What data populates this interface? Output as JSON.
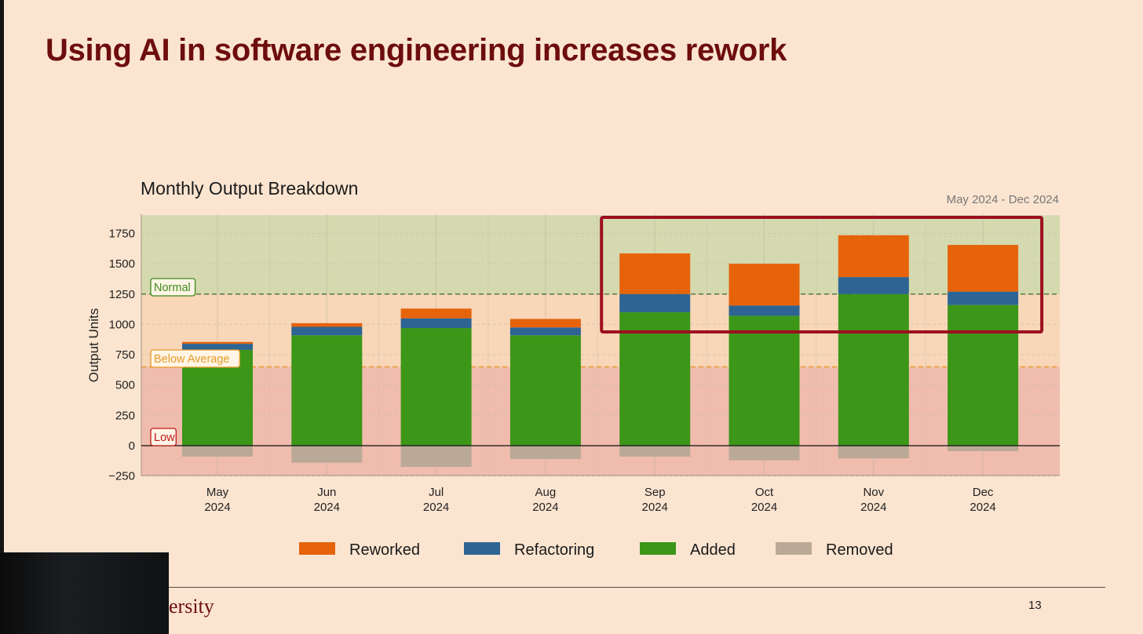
{
  "slide": {
    "title": "Using AI in software engineering increases rework",
    "footer_text": "ersity",
    "page_number": "13"
  },
  "chart_data": {
    "type": "bar",
    "stacked": true,
    "title": "Monthly Output Breakdown",
    "subtitle": "May 2024 - Dec 2024",
    "xlabel": "",
    "ylabel": "Output Units",
    "ylim": [
      -250,
      1900
    ],
    "yticks": [
      -250,
      0,
      250,
      500,
      750,
      1000,
      1250,
      1500,
      1750
    ],
    "grid": true,
    "categories": [
      "May\n2024",
      "Jun\n2024",
      "Jul\n2024",
      "Aug\n2024",
      "Sep\n2024",
      "Oct\n2024",
      "Nov\n2024",
      "Dec\n2024"
    ],
    "series": [
      {
        "name": "Added",
        "color": "#3c9618",
        "values": [
          790,
          910,
          970,
          910,
          1100,
          1070,
          1250,
          1160
        ]
      },
      {
        "name": "Refactoring",
        "color": "#2d6494",
        "values": [
          50,
          70,
          80,
          65,
          150,
          85,
          140,
          110
        ]
      },
      {
        "name": "Reworked",
        "color": "#e6630a",
        "values": [
          15,
          30,
          80,
          70,
          335,
          345,
          345,
          385
        ]
      },
      {
        "name": "Removed",
        "color": "#baa996",
        "values": [
          -90,
          -140,
          -175,
          -110,
          -90,
          -120,
          -105,
          -45
        ]
      }
    ],
    "legend": {
      "position": "bottom",
      "entries": [
        "Reworked",
        "Refactoring",
        "Added",
        "Removed"
      ]
    },
    "bands": [
      {
        "label": "Normal",
        "from": 1250,
        "to": 1900,
        "color": "#d5d9af",
        "line_color": "#4f7a3c",
        "label_color": "#3c8a1c"
      },
      {
        "label": "Below Average",
        "from": 650,
        "to": 1250,
        "color": "#f8d6b8",
        "line_color": "#e89a28",
        "label_color": "#e89a28"
      },
      {
        "label": "Low",
        "from": -250,
        "to": 650,
        "color": "#f0bcae",
        "line_color": null,
        "label_color": "#c01818"
      }
    ],
    "highlight": {
      "from_category": "Sep\n2024",
      "to_category": "Dec\n2024",
      "color": "#9c0f1f"
    }
  }
}
